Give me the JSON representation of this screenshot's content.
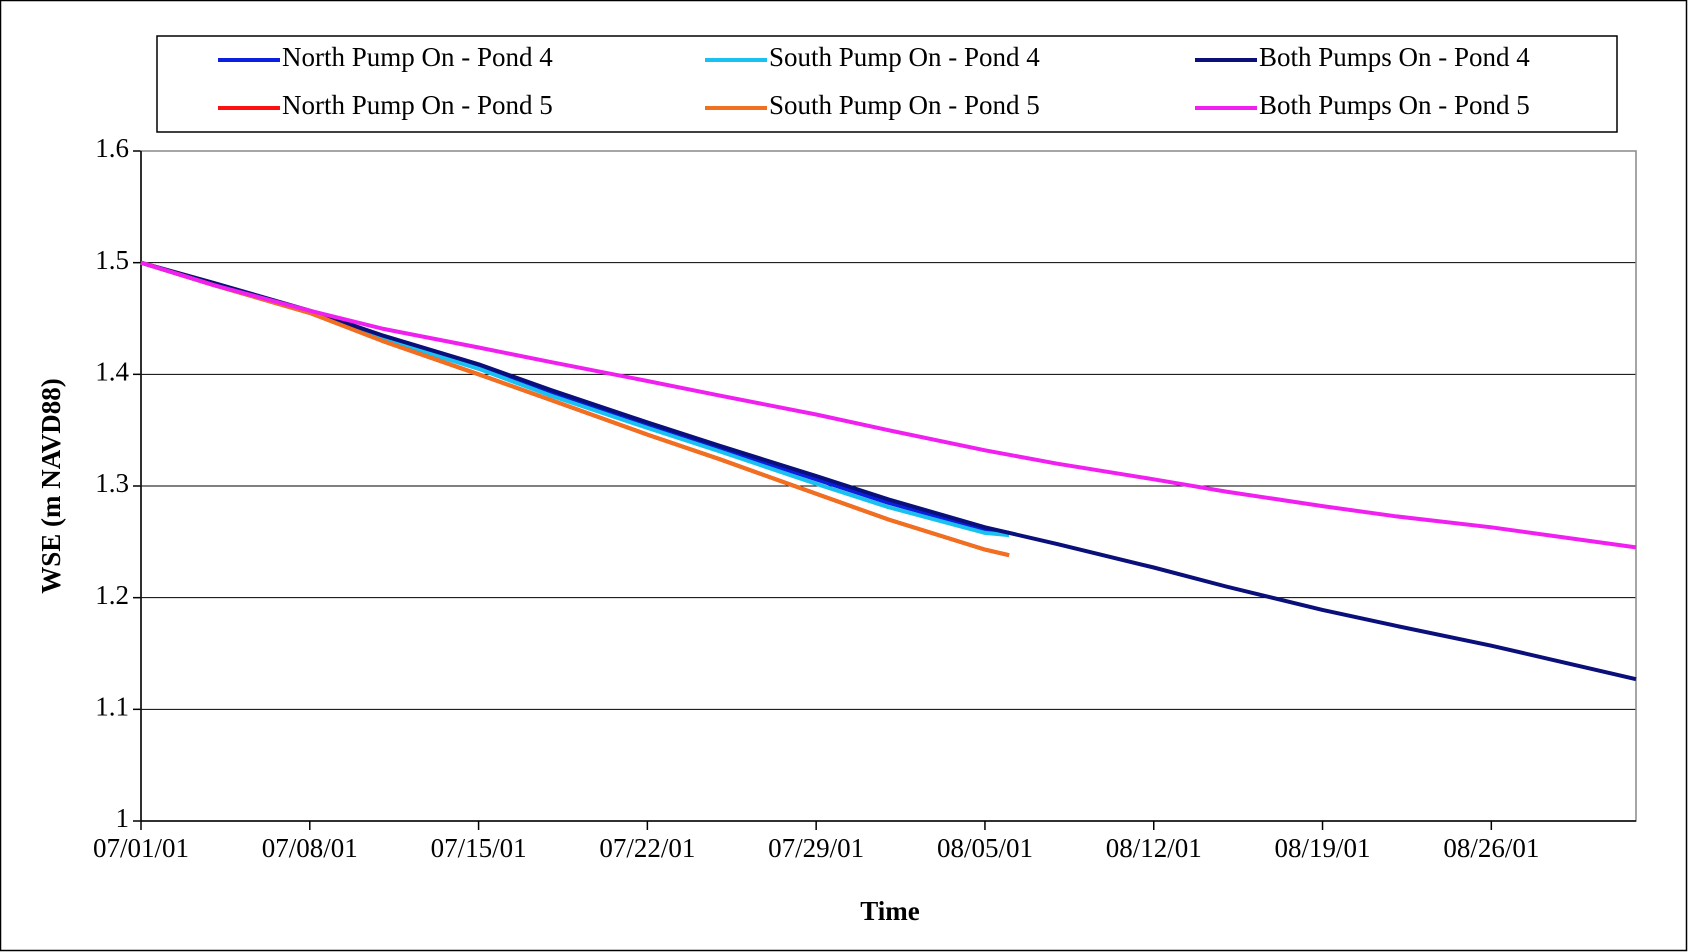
{
  "chart_data": {
    "type": "line",
    "xlabel": "Time",
    "ylabel": "WSE (m NAVD88)",
    "xlim": [
      "07/01/01",
      "09/01/01"
    ],
    "xticks": [
      "07/01/01",
      "07/08/01",
      "07/15/01",
      "07/22/01",
      "07/29/01",
      "08/05/01",
      "08/12/01",
      "08/19/01",
      "08/26/01"
    ],
    "ylim": [
      1,
      1.6
    ],
    "yticks": [
      1,
      1.1,
      1.2,
      1.3,
      1.4,
      1.5,
      1.6
    ],
    "grid": true,
    "legend": "top",
    "series": [
      {
        "name": "North Pump On - Pond 4",
        "color": "#0a1fe0",
        "x": [
          "07/01/01",
          "07/04/01",
          "07/08/01",
          "07/11/01",
          "07/15/01",
          "07/18/01",
          "07/22/01",
          "07/25/01",
          "07/29/01",
          "08/01/01",
          "08/05/01",
          "08/06/01"
        ],
        "values": [
          1.5,
          1.481,
          1.456,
          1.434,
          1.407,
          1.384,
          1.355,
          1.334,
          1.306,
          1.285,
          1.261,
          1.258
        ]
      },
      {
        "name": "South Pump On - Pond 4",
        "color": "#19c0f0",
        "x": [
          "07/01/01",
          "07/04/01",
          "07/08/01",
          "07/11/01",
          "07/15/01",
          "07/18/01",
          "07/22/01",
          "07/25/01",
          "07/29/01",
          "08/01/01",
          "08/05/01",
          "08/06/01"
        ],
        "values": [
          1.5,
          1.48,
          1.455,
          1.432,
          1.405,
          1.381,
          1.352,
          1.331,
          1.302,
          1.281,
          1.258,
          1.256
        ]
      },
      {
        "name": "Both Pumps On - Pond 4",
        "color": "#0a0f7a",
        "x": [
          "07/01/01",
          "07/04/01",
          "07/08/01",
          "07/11/01",
          "07/15/01",
          "07/18/01",
          "07/22/01",
          "07/25/01",
          "07/29/01",
          "08/01/01",
          "08/05/01",
          "08/08/01",
          "08/12/01",
          "08/15/01",
          "08/19/01",
          "08/22/01",
          "08/26/01",
          "08/29/01",
          "09/01/01"
        ],
        "values": [
          1.5,
          1.482,
          1.457,
          1.435,
          1.409,
          1.386,
          1.357,
          1.336,
          1.309,
          1.288,
          1.263,
          1.248,
          1.227,
          1.21,
          1.189,
          1.175,
          1.157,
          1.142,
          1.127
        ]
      },
      {
        "name": "North Pump On - Pond 5",
        "color": "#ff1010",
        "x": [
          "07/01/01",
          "07/04/01",
          "07/08/01",
          "07/11/01",
          "07/15/01",
          "07/18/01",
          "07/22/01",
          "07/25/01",
          "07/29/01",
          "08/01/01",
          "08/05/01",
          "08/06/01"
        ],
        "values": [
          1.5,
          1.48,
          1.455,
          1.43,
          1.4,
          1.377,
          1.346,
          1.324,
          1.293,
          1.27,
          1.243,
          1.238
        ]
      },
      {
        "name": "South Pump On - Pond 5",
        "color": "#f07020",
        "x": [
          "07/01/01",
          "07/04/01",
          "07/08/01",
          "07/11/01",
          "07/15/01",
          "07/18/01",
          "07/22/01",
          "07/25/01",
          "07/29/01",
          "08/01/01",
          "08/05/01",
          "08/06/01"
        ],
        "values": [
          1.5,
          1.48,
          1.455,
          1.43,
          1.4,
          1.377,
          1.346,
          1.324,
          1.293,
          1.27,
          1.243,
          1.238
        ]
      },
      {
        "name": "Both Pumps On - Pond 5",
        "color": "#f020f0",
        "x": [
          "07/01/01",
          "07/04/01",
          "07/08/01",
          "07/11/01",
          "07/15/01",
          "07/18/01",
          "07/22/01",
          "07/25/01",
          "07/29/01",
          "08/01/01",
          "08/05/01",
          "08/08/01",
          "08/12/01",
          "08/15/01",
          "08/19/01",
          "08/22/01",
          "08/26/01",
          "08/29/01",
          "09/01/01"
        ],
        "values": [
          1.5,
          1.48,
          1.457,
          1.441,
          1.424,
          1.411,
          1.394,
          1.381,
          1.364,
          1.35,
          1.332,
          1.32,
          1.306,
          1.295,
          1.282,
          1.273,
          1.263,
          1.254,
          1.245
        ]
      }
    ]
  }
}
